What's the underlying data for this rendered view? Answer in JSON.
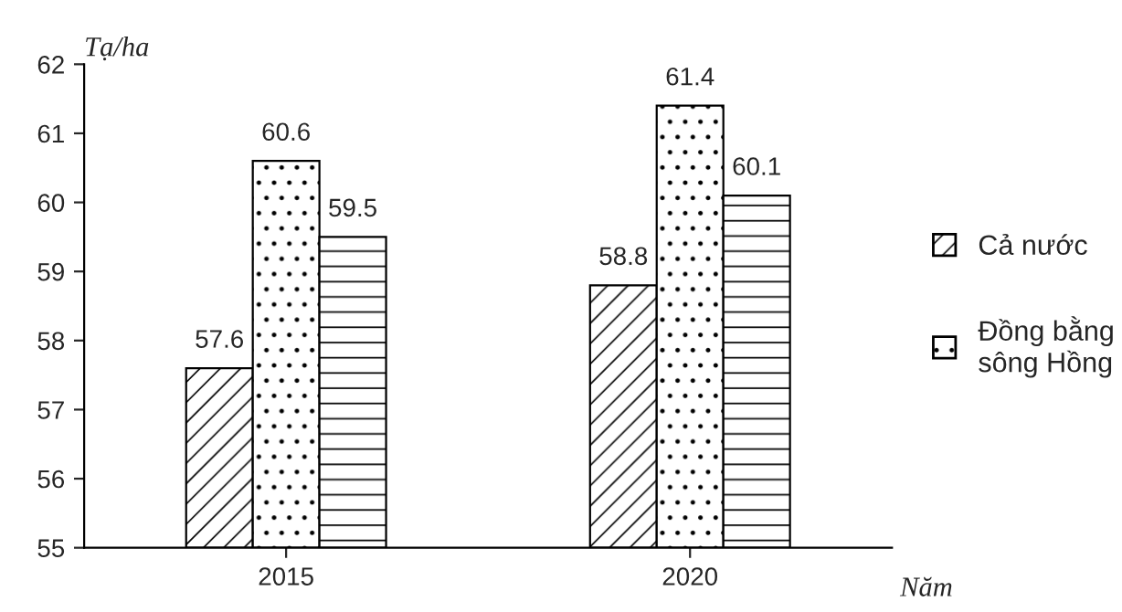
{
  "chart_data": {
    "type": "bar",
    "ylabel": "Tạ/ha",
    "xlabel": "Năm",
    "categories": [
      "2015",
      "2020"
    ],
    "series": [
      {
        "name": "Cả nước",
        "color": "#000000",
        "values": [
          57.6,
          58.8
        ]
      },
      {
        "name": "Đồng bằng sông Hồng",
        "color": "#000000",
        "values": [
          60.6,
          61.4
        ]
      },
      {
        "color": "#000000",
        "values": [
          59.5,
          60.1
        ]
      }
    ],
    "ylim": [
      55,
      62
    ],
    "yticks": [
      55,
      56,
      57,
      58,
      59,
      60,
      61,
      62
    ],
    "data_labels": true,
    "grid": false,
    "legend": "right"
  }
}
